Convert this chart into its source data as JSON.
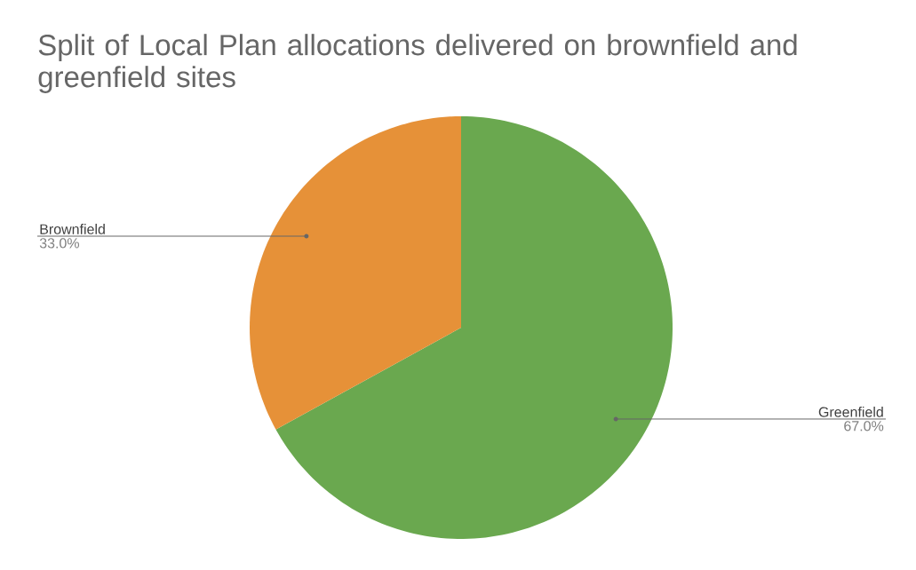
{
  "chart_data": {
    "type": "pie",
    "title": "Split of Local Plan allocations delivered on brownfield and greenfield sites",
    "categories": [
      "Greenfield",
      "Brownfield"
    ],
    "values": [
      67.0,
      33.0
    ],
    "colors": [
      "#6aa84f",
      "#e69138"
    ],
    "value_labels": [
      "67.0%",
      "33.0%"
    ]
  }
}
